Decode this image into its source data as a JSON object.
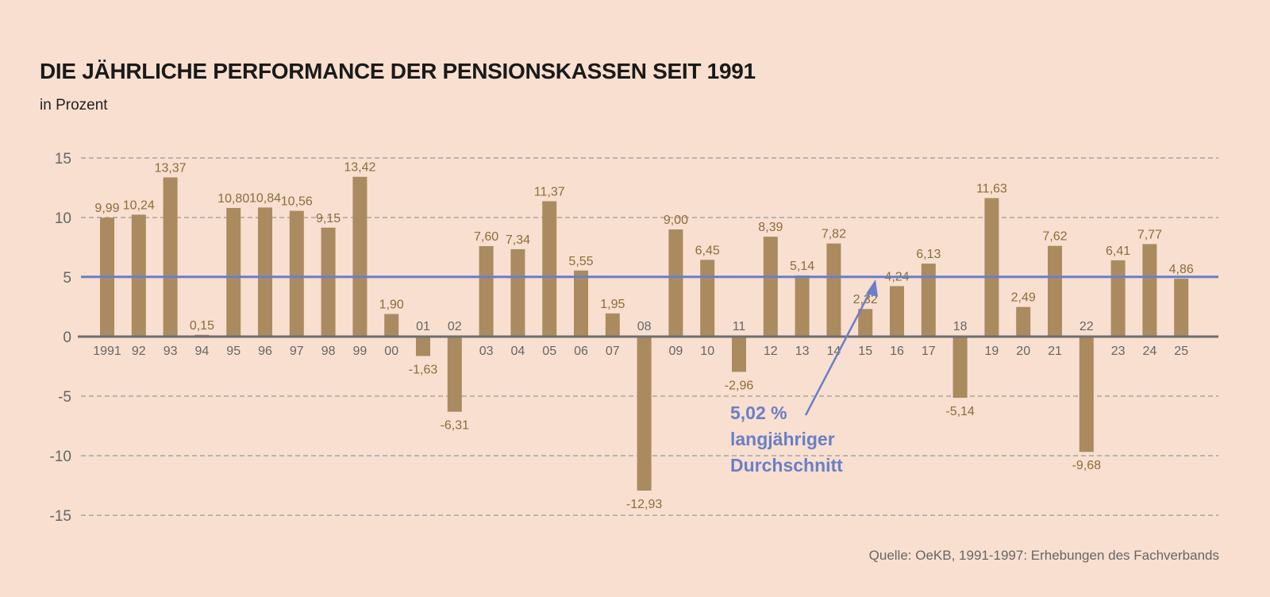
{
  "chart_data": {
    "type": "bar",
    "title": "DIE JÄHRLICHE PERFORMANCE DER PENSIONSKASSEN SEIT 1991",
    "subtitle": "in Prozent",
    "xlabel": "",
    "ylabel": "",
    "ylim": [
      -15,
      15
    ],
    "yticks": [
      "15",
      "10",
      "5",
      "0",
      "-5",
      "-10",
      "-15"
    ],
    "ytick_values": [
      15,
      10,
      5,
      0,
      -5,
      -10,
      -15
    ],
    "grid": true,
    "categories": [
      "1991",
      "92",
      "93",
      "94",
      "95",
      "96",
      "97",
      "98",
      "99",
      "00",
      "01",
      "02",
      "03",
      "04",
      "05",
      "06",
      "07",
      "08",
      "09",
      "10",
      "11",
      "12",
      "13",
      "14",
      "15",
      "16",
      "17",
      "18",
      "19",
      "20",
      "21",
      "22",
      "23",
      "24",
      "25"
    ],
    "values": [
      9.99,
      10.24,
      13.37,
      0.15,
      10.8,
      10.84,
      10.56,
      9.15,
      13.42,
      1.9,
      -1.63,
      -6.31,
      7.6,
      7.34,
      11.37,
      5.55,
      1.95,
      -12.93,
      9.0,
      6.45,
      -2.96,
      8.39,
      5.14,
      7.82,
      2.32,
      4.24,
      6.13,
      -5.14,
      11.63,
      2.49,
      7.62,
      -9.68,
      6.41,
      7.77,
      4.86
    ],
    "value_labels": [
      "9,99",
      "10,24",
      "13,37",
      "0,15",
      "10,80",
      "10,84",
      "10,56",
      "9,15",
      "13,42",
      "1,90",
      "-1,63",
      "-6,31",
      "7,60",
      "7,34",
      "11,37",
      "5,55",
      "1,95",
      "-12,93",
      "9,00",
      "6,45",
      "-2,96",
      "8,39",
      "5,14",
      "7,82",
      "2,32",
      "4,24",
      "6,13",
      "-5,14",
      "11,63",
      "2,49",
      "7,62",
      "-9,68",
      "6,41",
      "7,77",
      "4,86"
    ],
    "average": {
      "value": 5.02,
      "label_lines": [
        "5,02 %",
        "langjähriger",
        "Durchschnitt"
      ]
    },
    "source": "Quelle: OeKB, 1991-1997: Erhebungen des Fachverbands",
    "colors": {
      "bar": "#aa8b60",
      "label": "#8c6d3a",
      "average": "#6a7fc6",
      "axis": "#6e6e6e",
      "grid": "#999999",
      "background": "#f8dfd0"
    }
  }
}
